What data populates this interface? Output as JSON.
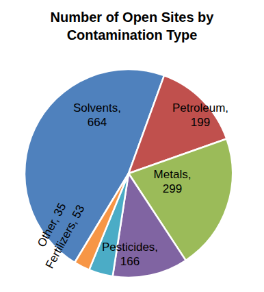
{
  "chart_data": {
    "type": "pie",
    "title": "Number of Open Sites by Contamination Type",
    "categories": [
      "Solvents",
      "Petroleum",
      "Metals",
      "Pesticides",
      "Fertilizers",
      "Other"
    ],
    "values": [
      664,
      199,
      299,
      166,
      53,
      35
    ],
    "value_labels": [
      "Solvents, 664",
      "Petroleum, 199",
      "Metals, 299",
      "Pesticides, 166",
      "Fertilizers, 53",
      "Other, 35"
    ],
    "colors": [
      "#4f81bd",
      "#c0504d",
      "#9bbb59",
      "#8064a2",
      "#4bacc6",
      "#f79646"
    ],
    "data_labels": true
  }
}
